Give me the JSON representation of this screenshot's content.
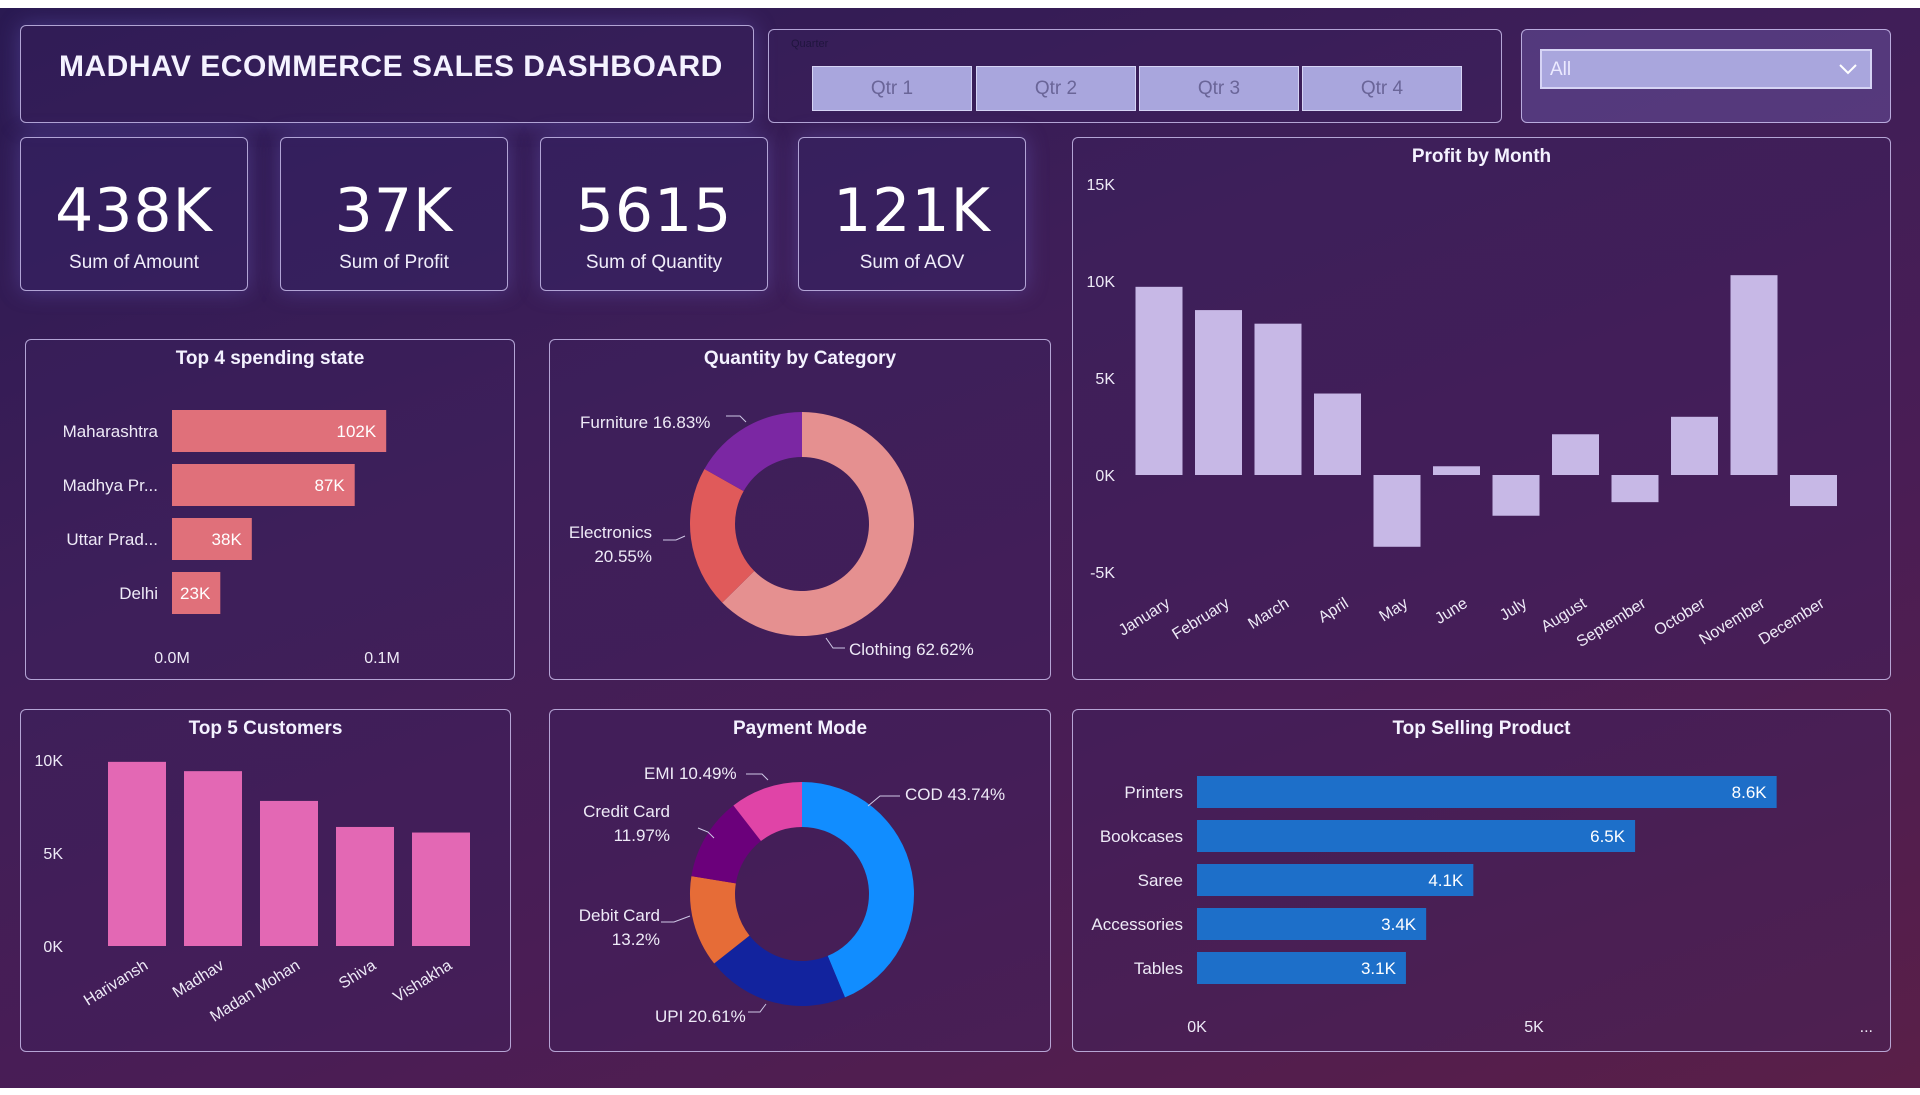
{
  "header": {
    "title": "MADHAV ECOMMERCE SALES DASHBOARD"
  },
  "slicer": {
    "caption": "Quarter",
    "buttons": [
      "Qtr 1",
      "Qtr 2",
      "Qtr 3",
      "Qtr 4"
    ]
  },
  "dropdown": {
    "value": "All",
    "icon": "chevron-down-icon"
  },
  "kpis": [
    {
      "value": "438K",
      "label": "Sum of Amount"
    },
    {
      "value": "37K",
      "label": "Sum of Profit"
    },
    {
      "value": "5615",
      "label": "Sum of Quantity"
    },
    {
      "value": "121K",
      "label": "Sum of AOV"
    }
  ],
  "colors": {
    "state_bar": "#e0707a",
    "month_bar": "#c7b8e6",
    "customer_bar": "#e368b4",
    "product_bar": "#1d6fc9",
    "category": [
      "#e59090",
      "#e05a5a",
      "#7b27a3"
    ],
    "payment": [
      "#118dff",
      "#12239e",
      "#e66c37",
      "#6b007b",
      "#e044a7"
    ]
  },
  "chart_data": [
    {
      "id": "states",
      "type": "bar",
      "orientation": "horizontal",
      "title": "Top 4 spending state",
      "categories": [
        "Maharashtra",
        "Madhya Pr...",
        "Uttar Prad...",
        "Delhi"
      ],
      "values": [
        102000,
        87000,
        38000,
        23000
      ],
      "data_labels": [
        "102K",
        "87K",
        "38K",
        "23K"
      ],
      "x_ticks": [
        "0.0M",
        "0.1M"
      ],
      "xlim": [
        0,
        100000
      ]
    },
    {
      "id": "category",
      "type": "pie",
      "title": "Quantity by Category",
      "categories": [
        "Clothing",
        "Electronics",
        "Furniture"
      ],
      "values": [
        62.62,
        20.55,
        16.83
      ],
      "labels": [
        "Clothing 62.62%",
        "Electronics 20.55%",
        "Furniture 16.83%"
      ]
    },
    {
      "id": "months",
      "type": "bar",
      "title": "Profit by Month",
      "categories": [
        "January",
        "February",
        "March",
        "April",
        "May",
        "June",
        "July",
        "August",
        "September",
        "October",
        "November",
        "December"
      ],
      "values": [
        9700,
        8500,
        7800,
        4200,
        -3700,
        450,
        -2100,
        2100,
        -1400,
        3000,
        10300,
        -1600
      ],
      "y_ticks": [
        "15K",
        "10K",
        "5K",
        "0K",
        "-5K"
      ],
      "ylim": [
        -5000,
        15000
      ]
    },
    {
      "id": "customers",
      "type": "bar",
      "title": "Top 5 Customers",
      "categories": [
        "Harivansh",
        "Madhav",
        "Madan Mohan",
        "Shiva",
        "Vishakha"
      ],
      "values": [
        9900,
        9400,
        7800,
        6400,
        6100
      ],
      "y_ticks": [
        "10K",
        "5K",
        "0K"
      ],
      "ylim": [
        0,
        10000
      ]
    },
    {
      "id": "payment",
      "type": "pie",
      "title": "Payment Mode",
      "categories": [
        "COD",
        "UPI",
        "Debit Card",
        "Credit Card",
        "EMI"
      ],
      "values": [
        43.74,
        20.61,
        13.2,
        11.97,
        10.49
      ],
      "labels": [
        "COD 43.74%",
        "UPI 20.61%",
        "Debit Card 13.2%",
        "Credit Card 11.97%",
        "EMI 10.49%"
      ]
    },
    {
      "id": "products",
      "type": "bar",
      "orientation": "horizontal",
      "title": "Top Selling Product",
      "categories": [
        "Printers",
        "Bookcases",
        "Saree",
        "Accessories",
        "Tables"
      ],
      "values": [
        8600,
        6500,
        4100,
        3400,
        3100
      ],
      "data_labels": [
        "8.6K",
        "6.5K",
        "4.1K",
        "3.4K",
        "3.1K"
      ],
      "x_ticks": [
        "0K",
        "5K"
      ],
      "xlim": [
        0,
        5000
      ],
      "more_label": "..."
    }
  ]
}
